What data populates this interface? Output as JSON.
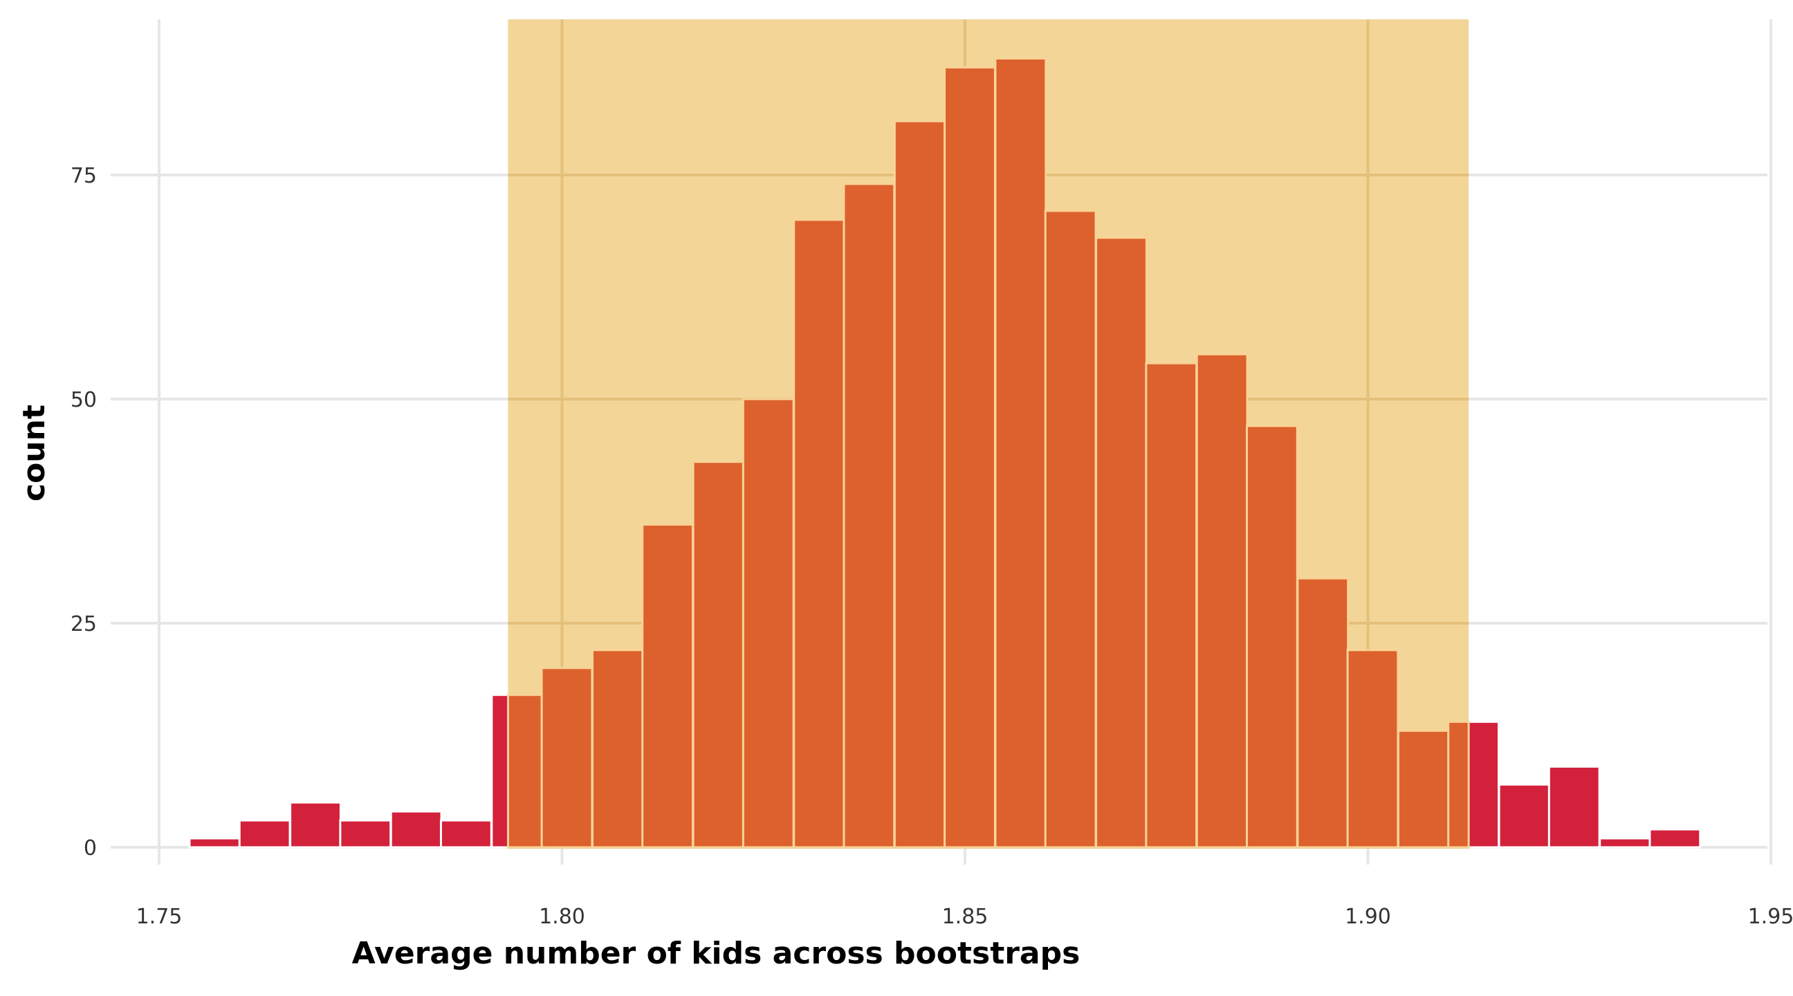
{
  "chart_data": {
    "type": "bar",
    "xlabel": "Average number of kids across bootstraps",
    "ylabel": "count",
    "xlim": [
      1.75,
      1.95
    ],
    "ylim": [
      0,
      90
    ],
    "x_ticks": [
      "1.75",
      "1.80",
      "1.85",
      "1.90",
      "1.95"
    ],
    "y_ticks": [
      "0",
      "25",
      "50",
      "75"
    ],
    "grid": true,
    "confidence_interval": [
      1.7933,
      1.9125
    ],
    "bin_width": 0.00625,
    "bins": [
      {
        "center": 1.7569,
        "count": 1
      },
      {
        "center": 1.7631,
        "count": 3
      },
      {
        "center": 1.7694,
        "count": 5
      },
      {
        "center": 1.7756,
        "count": 3
      },
      {
        "center": 1.7819,
        "count": 4
      },
      {
        "center": 1.7881,
        "count": 3
      },
      {
        "center": 1.7944,
        "count": 17
      },
      {
        "center": 1.8006,
        "count": 20
      },
      {
        "center": 1.8069,
        "count": 22
      },
      {
        "center": 1.8131,
        "count": 36
      },
      {
        "center": 1.8194,
        "count": 43
      },
      {
        "center": 1.8256,
        "count": 50
      },
      {
        "center": 1.8319,
        "count": 70
      },
      {
        "center": 1.8381,
        "count": 74
      },
      {
        "center": 1.8444,
        "count": 81
      },
      {
        "center": 1.8506,
        "count": 87
      },
      {
        "center": 1.8569,
        "count": 88
      },
      {
        "center": 1.8631,
        "count": 71
      },
      {
        "center": 1.8694,
        "count": 68
      },
      {
        "center": 1.8756,
        "count": 54
      },
      {
        "center": 1.8819,
        "count": 55
      },
      {
        "center": 1.8881,
        "count": 47
      },
      {
        "center": 1.8944,
        "count": 30
      },
      {
        "center": 1.9006,
        "count": 22
      },
      {
        "center": 1.9069,
        "count": 13
      },
      {
        "center": 1.9131,
        "count": 14
      },
      {
        "center": 1.9194,
        "count": 7
      },
      {
        "center": 1.9256,
        "count": 9
      },
      {
        "center": 1.9319,
        "count": 1
      },
      {
        "center": 1.9381,
        "count": 2
      }
    ],
    "colors": {
      "bar_outside_ci": "#d3213c",
      "bar_inside_ci": "#dd612c",
      "ci_band": "#f1d18e",
      "bar_edge_inside": "#f8d398",
      "bar_edge_outside": "#ffffff",
      "grid": "#e6e6e6"
    }
  }
}
